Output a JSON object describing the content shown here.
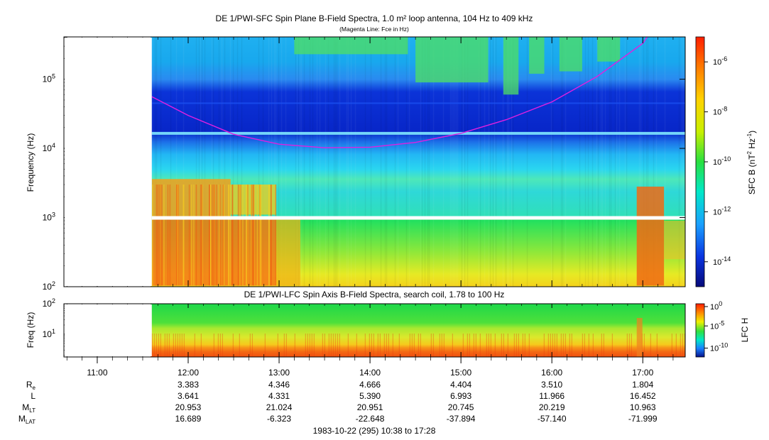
{
  "chart_data": [
    {
      "type": "heatmap",
      "title": "DE 1/PWI-SFC  Spin Plane B-Field Spectra, 1.0 m² loop antenna, 104 Hz to 409 kHz",
      "subtitle": "(Magenta Line: Fce in Hz)",
      "ylabel": "Frequency (Hz)",
      "yscale": "log",
      "ylim": [
        100,
        409000
      ],
      "y_ticks": [
        {
          "value": 100,
          "base": "10",
          "exp": "2"
        },
        {
          "value": 1000,
          "base": "10",
          "exp": "3"
        },
        {
          "value": 10000,
          "base": "10",
          "exp": "4"
        },
        {
          "value": 100000,
          "base": "10",
          "exp": "5"
        }
      ],
      "data_start_time": "11:36",
      "colorbar": {
        "label_main": "SFC B (nT",
        "label_sup1": "2",
        "label_mid": " Hz",
        "label_sup2": "-1",
        "label_end": ")",
        "scale": "log",
        "range": [
          1e-15,
          1e-05
        ],
        "ticks": [
          {
            "value": 1e-06,
            "base": "10",
            "exp": "-6"
          },
          {
            "value": 1e-08,
            "base": "10",
            "exp": "-8"
          },
          {
            "value": 1e-10,
            "base": "10",
            "exp": "-10"
          },
          {
            "value": 1e-12,
            "base": "10",
            "exp": "-12"
          },
          {
            "value": 1e-14,
            "base": "10",
            "exp": "-14"
          }
        ]
      },
      "fce_line": {
        "name": "Fce",
        "color": "#e020e0",
        "points": [
          {
            "time": "11:36",
            "freq": 56000
          },
          {
            "time": "12:00",
            "freq": 30000
          },
          {
            "time": "12:30",
            "freq": 16000
          },
          {
            "time": "13:00",
            "freq": 11500
          },
          {
            "time": "13:30",
            "freq": 10200
          },
          {
            "time": "14:00",
            "freq": 10400
          },
          {
            "time": "14:30",
            "freq": 12200
          },
          {
            "time": "15:00",
            "freq": 16500
          },
          {
            "time": "15:30",
            "freq": 26000
          },
          {
            "time": "16:00",
            "freq": 47000
          },
          {
            "time": "16:30",
            "freq": 110000
          },
          {
            "time": "17:00",
            "freq": 330000
          },
          {
            "time": "17:03",
            "freq": 409000
          }
        ]
      }
    },
    {
      "type": "heatmap",
      "title": "DE 1/PWI-LFC  Spin Axis B-Field Spectra, search coil, 1.78 to 100 Hz",
      "ylabel": "Freq (Hz)",
      "yscale": "log",
      "ylim": [
        1.78,
        100
      ],
      "y_ticks": [
        {
          "value": 10,
          "base": "10",
          "exp": "1"
        },
        {
          "value": 100,
          "base": "10",
          "exp": "2"
        }
      ],
      "colorbar": {
        "label": "LFC H",
        "scale": "log",
        "range": [
          1e-12,
          1
        ],
        "ticks": [
          {
            "value": 1,
            "base": "10",
            "exp": "0"
          },
          {
            "value": 1e-05,
            "base": "10",
            "exp": "-5"
          },
          {
            "value": 1e-10,
            "base": "10",
            "exp": "-10"
          }
        ]
      }
    }
  ],
  "time_axis": {
    "range": [
      "10:38",
      "17:28"
    ],
    "ticks": [
      "11:00",
      "12:00",
      "13:00",
      "14:00",
      "15:00",
      "16:00",
      "17:00"
    ]
  },
  "ephemeris": {
    "rows": [
      {
        "name": "R",
        "sub": "e",
        "values": [
          "3.383",
          "4.346",
          "4.666",
          "4.404",
          "3.510",
          "1.804"
        ]
      },
      {
        "name": "L",
        "sub": "",
        "values": [
          "3.641",
          "4.331",
          "5.390",
          "6.993",
          "11.966",
          "16.452"
        ]
      },
      {
        "name": "M",
        "sub": "LT",
        "values": [
          "20.953",
          "21.024",
          "20.951",
          "20.745",
          "20.219",
          "10.963"
        ]
      },
      {
        "name": "M",
        "sub": "LAT",
        "values": [
          "16.689",
          "-6.323",
          "-22.648",
          "-37.894",
          "-57.140",
          "-71.999"
        ]
      }
    ]
  },
  "footer": "1983-10-22 (295) 10:38 to 17:28"
}
